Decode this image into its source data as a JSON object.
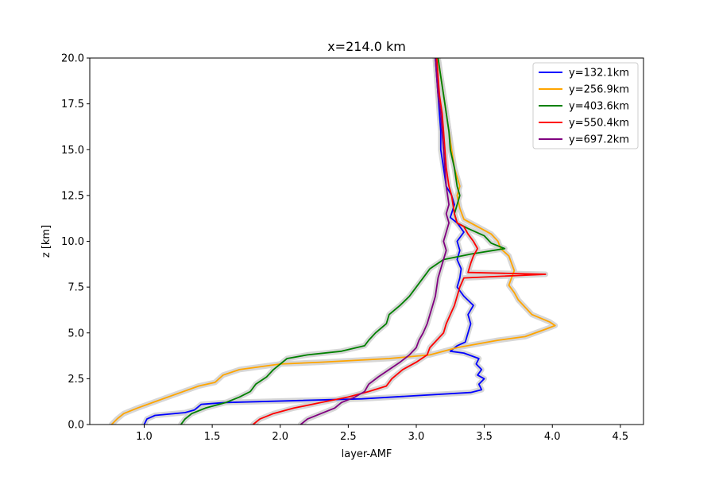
{
  "chart_data": {
    "type": "line",
    "title": "x=214.0 km",
    "xlabel": "layer-AMF",
    "ylabel": "z [km]",
    "xlim": [
      0.6,
      4.67
    ],
    "ylim": [
      0,
      20
    ],
    "xticks": [
      1.0,
      1.5,
      2.0,
      2.5,
      3.0,
      3.5,
      4.0,
      4.5
    ],
    "xtick_labels": [
      "1.0",
      "1.5",
      "2.0",
      "2.5",
      "3.0",
      "3.5",
      "4.0",
      "4.5"
    ],
    "yticks": [
      0,
      2.5,
      5,
      7.5,
      10,
      12.5,
      15,
      17.5,
      20
    ],
    "ytick_labels": [
      "0.0",
      "2.5",
      "5.0",
      "7.5",
      "10.0",
      "12.5",
      "15.0",
      "17.5",
      "20.0"
    ],
    "grid": false,
    "legend_position": "top-right",
    "uncertainty_band_color": "#d3d3d3",
    "series": [
      {
        "name": "y=132.1km",
        "color": "#0000ff",
        "points": [
          [
            1.0,
            0.0
          ],
          [
            1.02,
            0.3
          ],
          [
            1.08,
            0.5
          ],
          [
            1.3,
            0.65
          ],
          [
            1.37,
            0.8
          ],
          [
            1.42,
            1.1
          ],
          [
            1.6,
            1.2
          ],
          [
            2.6,
            1.4
          ],
          [
            3.4,
            1.75
          ],
          [
            3.48,
            1.9
          ],
          [
            3.46,
            2.2
          ],
          [
            3.5,
            2.5
          ],
          [
            3.45,
            2.7
          ],
          [
            3.48,
            3.0
          ],
          [
            3.44,
            3.3
          ],
          [
            3.46,
            3.6
          ],
          [
            3.35,
            3.9
          ],
          [
            3.25,
            4.0
          ],
          [
            3.3,
            4.3
          ],
          [
            3.36,
            4.5
          ],
          [
            3.38,
            5.0
          ],
          [
            3.4,
            5.5
          ],
          [
            3.38,
            6.0
          ],
          [
            3.42,
            6.5
          ],
          [
            3.35,
            7.0
          ],
          [
            3.3,
            7.5
          ],
          [
            3.32,
            8.0
          ],
          [
            3.33,
            8.5
          ],
          [
            3.3,
            9.0
          ],
          [
            3.32,
            9.5
          ],
          [
            3.3,
            10.0
          ],
          [
            3.35,
            10.5
          ],
          [
            3.3,
            11.0
          ],
          [
            3.25,
            11.3
          ],
          [
            3.28,
            12.0
          ],
          [
            3.26,
            12.5
          ],
          [
            3.22,
            13.0
          ],
          [
            3.2,
            14.0
          ],
          [
            3.18,
            15.0
          ],
          [
            3.18,
            16.0
          ],
          [
            3.17,
            17.0
          ],
          [
            3.16,
            18.0
          ],
          [
            3.15,
            19.0
          ],
          [
            3.14,
            20.0
          ]
        ]
      },
      {
        "name": "y=256.9km",
        "color": "#ffa500",
        "points": [
          [
            0.76,
            0.0
          ],
          [
            0.8,
            0.3
          ],
          [
            0.85,
            0.6
          ],
          [
            0.95,
            0.9
          ],
          [
            1.1,
            1.3
          ],
          [
            1.25,
            1.7
          ],
          [
            1.4,
            2.1
          ],
          [
            1.52,
            2.3
          ],
          [
            1.58,
            2.7
          ],
          [
            1.7,
            3.0
          ],
          [
            2.0,
            3.3
          ],
          [
            2.3,
            3.4
          ],
          [
            2.8,
            3.6
          ],
          [
            3.1,
            3.8
          ],
          [
            3.3,
            4.2
          ],
          [
            3.6,
            4.6
          ],
          [
            3.8,
            4.8
          ],
          [
            3.95,
            5.2
          ],
          [
            4.02,
            5.4
          ],
          [
            3.98,
            5.6
          ],
          [
            3.85,
            6.0
          ],
          [
            3.8,
            6.4
          ],
          [
            3.75,
            6.8
          ],
          [
            3.72,
            7.2
          ],
          [
            3.68,
            7.6
          ],
          [
            3.7,
            8.0
          ],
          [
            3.72,
            8.4
          ],
          [
            3.7,
            8.8
          ],
          [
            3.68,
            9.2
          ],
          [
            3.62,
            9.6
          ],
          [
            3.6,
            10.0
          ],
          [
            3.55,
            10.4
          ],
          [
            3.45,
            10.8
          ],
          [
            3.35,
            11.2
          ],
          [
            3.32,
            11.8
          ],
          [
            3.3,
            12.5
          ],
          [
            3.32,
            13.0
          ],
          [
            3.3,
            13.5
          ],
          [
            3.28,
            14.0
          ],
          [
            3.26,
            15.0
          ],
          [
            3.24,
            16.0
          ],
          [
            3.22,
            17.0
          ],
          [
            3.2,
            18.0
          ],
          [
            3.18,
            19.0
          ],
          [
            3.16,
            20.0
          ]
        ]
      },
      {
        "name": "y=403.6km",
        "color": "#008000",
        "points": [
          [
            1.27,
            0.0
          ],
          [
            1.3,
            0.3
          ],
          [
            1.35,
            0.6
          ],
          [
            1.45,
            0.9
          ],
          [
            1.6,
            1.2
          ],
          [
            1.7,
            1.5
          ],
          [
            1.78,
            1.8
          ],
          [
            1.82,
            2.2
          ],
          [
            1.9,
            2.6
          ],
          [
            1.95,
            3.0
          ],
          [
            2.0,
            3.3
          ],
          [
            2.05,
            3.6
          ],
          [
            2.2,
            3.8
          ],
          [
            2.45,
            4.0
          ],
          [
            2.62,
            4.3
          ],
          [
            2.65,
            4.6
          ],
          [
            2.7,
            5.0
          ],
          [
            2.78,
            5.5
          ],
          [
            2.8,
            6.0
          ],
          [
            2.88,
            6.5
          ],
          [
            2.95,
            7.0
          ],
          [
            3.0,
            7.5
          ],
          [
            3.05,
            8.0
          ],
          [
            3.1,
            8.5
          ],
          [
            3.2,
            9.0
          ],
          [
            3.4,
            9.3
          ],
          [
            3.65,
            9.6
          ],
          [
            3.55,
            9.9
          ],
          [
            3.5,
            10.3
          ],
          [
            3.38,
            10.7
          ],
          [
            3.3,
            11.0
          ],
          [
            3.28,
            11.5
          ],
          [
            3.3,
            12.0
          ],
          [
            3.32,
            12.5
          ],
          [
            3.3,
            13.0
          ],
          [
            3.28,
            14.0
          ],
          [
            3.25,
            15.0
          ],
          [
            3.24,
            16.0
          ],
          [
            3.22,
            17.0
          ],
          [
            3.2,
            18.0
          ],
          [
            3.18,
            19.0
          ],
          [
            3.16,
            20.0
          ]
        ]
      },
      {
        "name": "y=550.4km",
        "color": "#ff0000",
        "points": [
          [
            1.8,
            0.0
          ],
          [
            1.85,
            0.3
          ],
          [
            1.95,
            0.6
          ],
          [
            2.1,
            0.9
          ],
          [
            2.3,
            1.2
          ],
          [
            2.5,
            1.5
          ],
          [
            2.65,
            1.8
          ],
          [
            2.78,
            2.1
          ],
          [
            2.82,
            2.5
          ],
          [
            2.9,
            3.0
          ],
          [
            3.0,
            3.4
          ],
          [
            3.08,
            3.8
          ],
          [
            3.1,
            4.2
          ],
          [
            3.15,
            4.6
          ],
          [
            3.2,
            5.0
          ],
          [
            3.22,
            5.5
          ],
          [
            3.25,
            6.0
          ],
          [
            3.28,
            6.5
          ],
          [
            3.3,
            7.0
          ],
          [
            3.32,
            7.5
          ],
          [
            3.35,
            8.0
          ],
          [
            3.95,
            8.2
          ],
          [
            3.38,
            8.3
          ],
          [
            3.4,
            8.8
          ],
          [
            3.42,
            9.2
          ],
          [
            3.45,
            9.6
          ],
          [
            3.42,
            10.0
          ],
          [
            3.38,
            10.4
          ],
          [
            3.35,
            10.8
          ],
          [
            3.3,
            11.0
          ],
          [
            3.28,
            11.5
          ],
          [
            3.27,
            12.0
          ],
          [
            3.26,
            12.5
          ],
          [
            3.24,
            13.0
          ],
          [
            3.22,
            14.0
          ],
          [
            3.21,
            15.0
          ],
          [
            3.2,
            16.0
          ],
          [
            3.19,
            17.0
          ],
          [
            3.17,
            18.0
          ],
          [
            3.16,
            19.0
          ],
          [
            3.15,
            20.0
          ]
        ]
      },
      {
        "name": "y=697.2km",
        "color": "#800080",
        "points": [
          [
            2.15,
            0.0
          ],
          [
            2.2,
            0.3
          ],
          [
            2.3,
            0.6
          ],
          [
            2.4,
            0.9
          ],
          [
            2.45,
            1.2
          ],
          [
            2.55,
            1.5
          ],
          [
            2.62,
            1.8
          ],
          [
            2.65,
            2.2
          ],
          [
            2.72,
            2.6
          ],
          [
            2.8,
            3.0
          ],
          [
            2.88,
            3.4
          ],
          [
            2.95,
            3.8
          ],
          [
            3.0,
            4.2
          ],
          [
            3.02,
            4.6
          ],
          [
            3.05,
            5.0
          ],
          [
            3.08,
            5.5
          ],
          [
            3.1,
            6.0
          ],
          [
            3.12,
            6.5
          ],
          [
            3.14,
            7.0
          ],
          [
            3.15,
            7.5
          ],
          [
            3.16,
            8.0
          ],
          [
            3.18,
            8.5
          ],
          [
            3.2,
            9.0
          ],
          [
            3.22,
            9.5
          ],
          [
            3.2,
            10.0
          ],
          [
            3.22,
            10.5
          ],
          [
            3.24,
            11.0
          ],
          [
            3.22,
            11.5
          ],
          [
            3.24,
            12.0
          ],
          [
            3.23,
            12.5
          ],
          [
            3.22,
            13.0
          ],
          [
            3.21,
            14.0
          ],
          [
            3.2,
            15.0
          ],
          [
            3.19,
            16.0
          ],
          [
            3.18,
            17.0
          ],
          [
            3.16,
            18.0
          ],
          [
            3.15,
            19.0
          ],
          [
            3.14,
            20.0
          ]
        ]
      }
    ]
  }
}
